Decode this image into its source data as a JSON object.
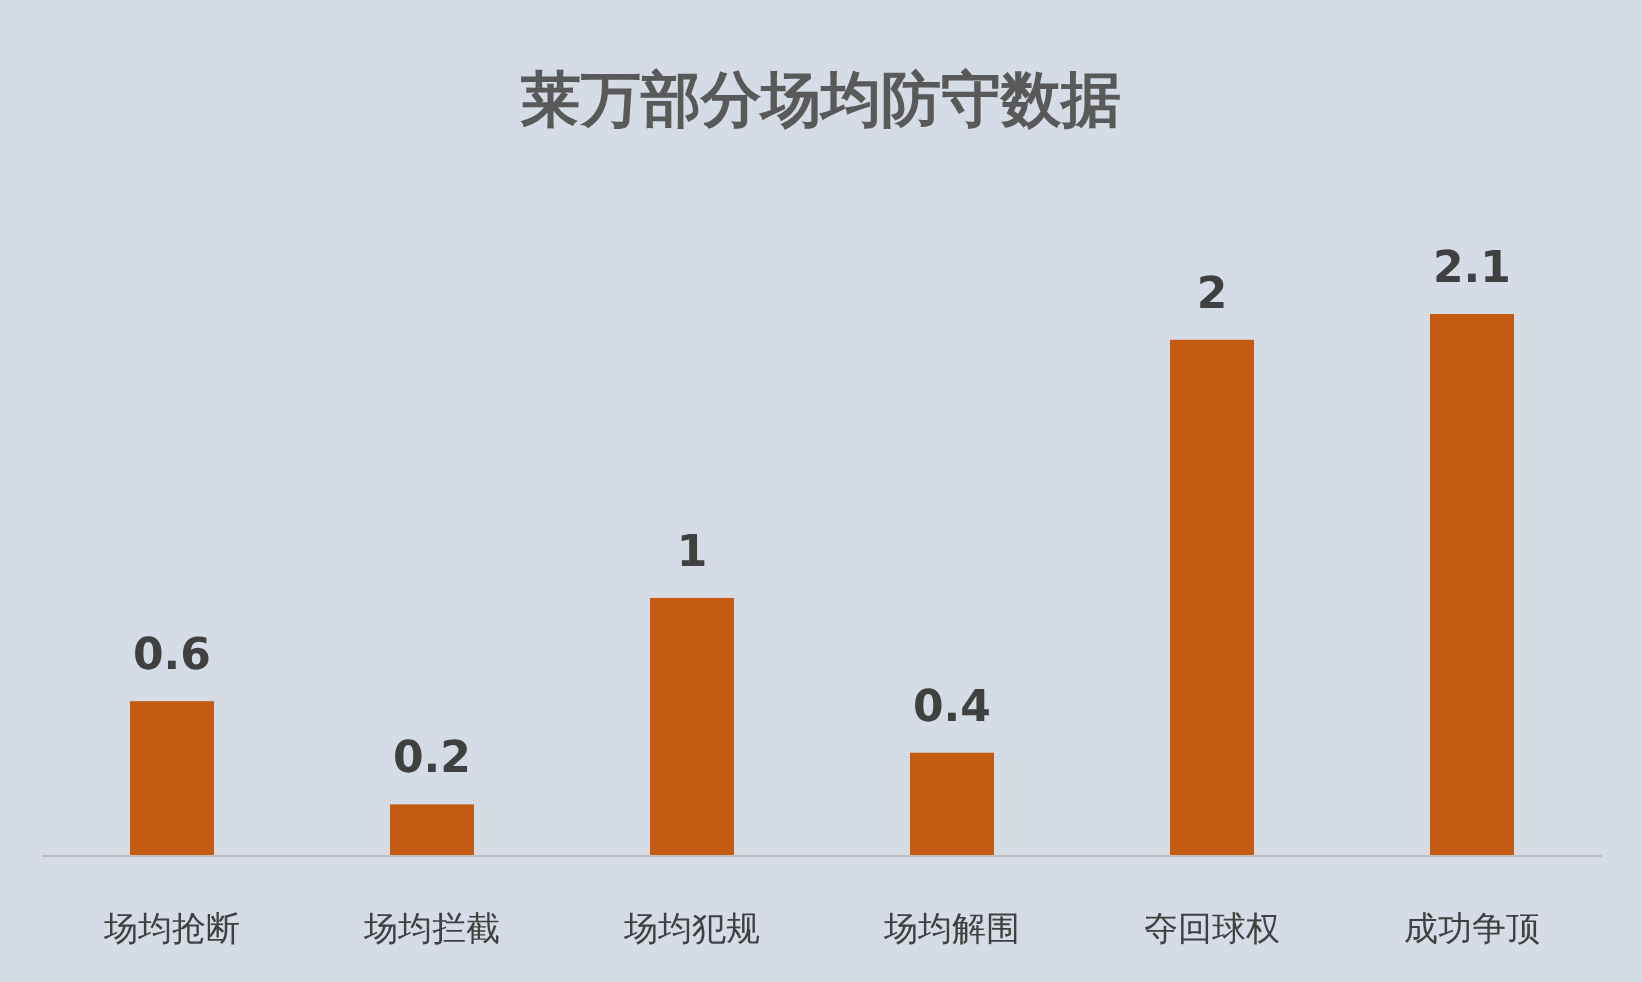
{
  "chart_data": {
    "type": "bar",
    "title": "莱万部分场均防守数据",
    "categories": [
      "场均抢断",
      "场均拦截",
      "场均犯规",
      "场均解围",
      "夺回球权",
      "成功争顶"
    ],
    "values": [
      0.6,
      0.2,
      1,
      0.4,
      2,
      2.1
    ],
    "color": "#c55a11",
    "data_labels": true
  }
}
